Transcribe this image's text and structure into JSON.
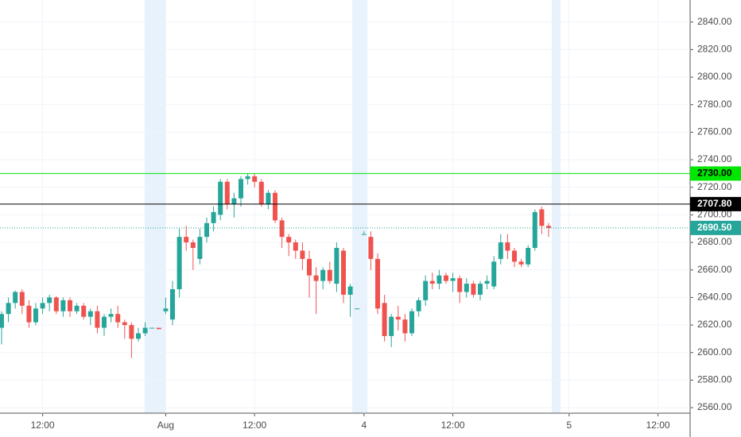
{
  "chart_data": {
    "type": "candlestick",
    "up_color": "#26a69a",
    "down_color": "#ef5350",
    "ylim": [
      2556,
      2856
    ],
    "yticks": [
      {
        "value": 2560,
        "label": "2560.00"
      },
      {
        "value": 2580,
        "label": "2580.00"
      },
      {
        "value": 2600,
        "label": "2600.00"
      },
      {
        "value": 2620,
        "label": "2620.00"
      },
      {
        "value": 2640,
        "label": "2640.00"
      },
      {
        "value": 2660,
        "label": "2660.00"
      },
      {
        "value": 2680,
        "label": "2680.00"
      },
      {
        "value": 2700,
        "label": "2700.00"
      },
      {
        "value": 2720,
        "label": "2720.00"
      },
      {
        "value": 2740,
        "label": "2740.00"
      },
      {
        "value": 2760,
        "label": "2760.00"
      },
      {
        "value": 2780,
        "label": "2780.00"
      },
      {
        "value": 2800,
        "label": "2800.00"
      },
      {
        "value": 2820,
        "label": "2820.00"
      },
      {
        "value": 2840,
        "label": "2840.00"
      }
    ],
    "grid": true,
    "price_lines": [
      {
        "value": 2730,
        "label": "2730.00",
        "color": "#00e600",
        "text_color": "#000000",
        "style": "solid"
      },
      {
        "value": 2707.8,
        "label": "2707.80",
        "color": "#000000",
        "text_color": "#ffffff",
        "style": "solid"
      },
      {
        "value": 2690.5,
        "label": "2690.50",
        "color": "#26a69a",
        "text_color": "#ffffff",
        "style": "dotted"
      }
    ],
    "categories": [
      null,
      null,
      null,
      null,
      null,
      null,
      "12:00",
      null,
      null,
      null,
      null,
      null,
      null,
      null,
      null,
      null,
      null,
      null,
      null,
      null,
      null,
      null,
      null,
      null,
      "Aug",
      null,
      null,
      null,
      null,
      null,
      null,
      null,
      null,
      null,
      null,
      null,
      null,
      "12:00",
      null,
      null,
      null,
      null,
      null,
      null,
      null,
      null,
      null,
      null,
      null,
      null,
      null,
      null,
      null,
      "4",
      null,
      null,
      null,
      null,
      null,
      null,
      null,
      null,
      null,
      null,
      null,
      null,
      "12:00",
      null,
      null,
      null,
      null,
      null,
      null,
      null,
      null,
      null,
      null,
      null,
      null,
      null,
      null,
      null,
      null,
      "5",
      null,
      null,
      null,
      null,
      null,
      null,
      null,
      null,
      null,
      null,
      null,
      null,
      "12:00"
    ],
    "open": [
      2618,
      2628,
      2636,
      2644,
      2634,
      2622,
      2632,
      2636,
      2640,
      2630,
      2638,
      2630,
      2634,
      2626,
      2630,
      2618,
      2626,
      2628,
      2622,
      2620,
      2610,
      2614,
      2618,
      2618,
      2630,
      2624,
      2646,
      2684,
      2680,
      2668,
      2684,
      2694,
      2700,
      2724,
      2708,
      2712,
      2726,
      2728,
      2724,
      2708,
      2716,
      2696,
      2684,
      2680,
      2674,
      2668,
      2656,
      2652,
      2660,
      2650,
      2674,
      2642,
      2632,
      2686,
      2684,
      2668,
      2636,
      2612,
      2626,
      2624,
      2614,
      2630,
      2638,
      2652,
      2650,
      2656,
      2652,
      2654,
      2644,
      2650,
      2642,
      2650,
      2648,
      2668,
      2680,
      2674,
      2666,
      2664,
      2676,
      2704,
      2692,
      null,
      null,
      null,
      null,
      null,
      null,
      null,
      null,
      null,
      null,
      null,
      null,
      null,
      null,
      null,
      null
    ],
    "high": [
      2630,
      2640,
      2645,
      2646,
      2638,
      2636,
      2640,
      2642,
      2641,
      2640,
      2640,
      2636,
      2636,
      2632,
      2634,
      2628,
      2632,
      2634,
      2624,
      2622,
      2618,
      2622,
      2618,
      2618,
      2640,
      2652,
      2690,
      2692,
      2682,
      2690,
      2698,
      2706,
      2726,
      2726,
      2716,
      2728,
      2730,
      2730,
      2726,
      2718,
      2718,
      2698,
      2686,
      2682,
      2680,
      2674,
      2662,
      2662,
      2666,
      2680,
      2676,
      2650,
      2632,
      2688,
      2688,
      2672,
      2642,
      2628,
      2634,
      2628,
      2632,
      2640,
      2656,
      2658,
      2660,
      2658,
      2658,
      2656,
      2654,
      2652,
      2652,
      2656,
      2670,
      2686,
      2686,
      2676,
      2668,
      2678,
      2704,
      2706,
      2694,
      null,
      null,
      null,
      null,
      null,
      null,
      null,
      null,
      null,
      null,
      null,
      null,
      null,
      null,
      null,
      null
    ],
    "low": [
      2606,
      2622,
      2632,
      2628,
      2618,
      2620,
      2628,
      2630,
      2628,
      2626,
      2626,
      2628,
      2624,
      2620,
      2614,
      2612,
      2622,
      2618,
      2610,
      2596,
      2608,
      2612,
      2618,
      2617,
      2628,
      2620,
      2640,
      2674,
      2660,
      2664,
      2680,
      2688,
      2696,
      2704,
      2698,
      2706,
      2722,
      2720,
      2706,
      2704,
      2694,
      2676,
      2670,
      2668,
      2660,
      2640,
      2628,
      2646,
      2650,
      2644,
      2636,
      2626,
      2632,
      2686,
      2660,
      2628,
      2608,
      2604,
      2616,
      2608,
      2612,
      2626,
      2634,
      2646,
      2646,
      2650,
      2644,
      2636,
      2640,
      2640,
      2638,
      2646,
      2646,
      2664,
      2668,
      2662,
      2662,
      2662,
      2674,
      2686,
      2684,
      null,
      null,
      null,
      null,
      null,
      null,
      null,
      null,
      null,
      null,
      null,
      null,
      null,
      null,
      null,
      null
    ],
    "close": [
      2628,
      2636,
      2644,
      2634,
      2622,
      2632,
      2636,
      2640,
      2630,
      2638,
      2630,
      2634,
      2626,
      2630,
      2618,
      2626,
      2628,
      2622,
      2620,
      2610,
      2614,
      2618,
      2618,
      2617,
      2632,
      2646,
      2684,
      2680,
      2676,
      2684,
      2694,
      2702,
      2724,
      2708,
      2712,
      2726,
      2728,
      2724,
      2708,
      2716,
      2696,
      2684,
      2680,
      2674,
      2668,
      2656,
      2652,
      2660,
      2652,
      2676,
      2642,
      2648,
      2632,
      2686,
      2668,
      2632,
      2612,
      2626,
      2624,
      2614,
      2630,
      2638,
      2652,
      2650,
      2656,
      2652,
      2654,
      2644,
      2650,
      2642,
      2650,
      2652,
      2666,
      2680,
      2674,
      2666,
      2664,
      2676,
      2702,
      2692,
      2690.5,
      null,
      null,
      null,
      null,
      null,
      null,
      null,
      null,
      null,
      null,
      null,
      null,
      null,
      null,
      null,
      null
    ]
  }
}
